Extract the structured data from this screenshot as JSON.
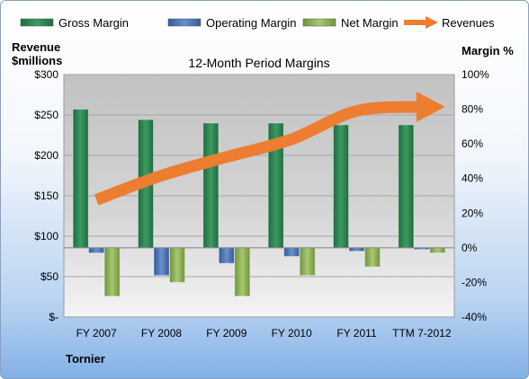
{
  "chart_data": {
    "type": "bar",
    "title": "12-Month Period Margins",
    "company": "Tornier",
    "ylabel_left": [
      "Revenue",
      "$millions"
    ],
    "ylabel_right": "Margin %",
    "categories": [
      "FY 2007",
      "FY 2008",
      "FY 2009",
      "FY 2010",
      "FY 2011",
      "TTM 7-2012"
    ],
    "left_axis": {
      "range": [
        0,
        300
      ],
      "ticks": [
        0,
        50,
        100,
        150,
        200,
        250,
        300
      ],
      "tick_labels": [
        "$-",
        "$50",
        "$100",
        "$150",
        "$200",
        "$250",
        "$300"
      ]
    },
    "right_axis": {
      "range": [
        -40,
        100
      ],
      "ticks": [
        -40,
        -20,
        0,
        20,
        40,
        60,
        80,
        100
      ],
      "tick_labels": [
        "-40%",
        "-20%",
        "0%",
        "20%",
        "40%",
        "60%",
        "80%",
        "100%"
      ]
    },
    "series": [
      {
        "name": "Gross Margin",
        "axis": "right",
        "kind": "bar",
        "color": "#2e7d4f",
        "values": [
          80,
          74,
          72,
          72,
          71,
          71
        ]
      },
      {
        "name": "Operating Margin",
        "axis": "right",
        "kind": "bar",
        "color": "#4a6fb0",
        "values": [
          -3,
          -16,
          -9,
          -5,
          -2,
          -1
        ]
      },
      {
        "name": "Net Margin",
        "axis": "right",
        "kind": "bar",
        "color": "#8db054",
        "values": [
          -28,
          -20,
          -28,
          -16,
          -11,
          -3
        ]
      },
      {
        "name": "Revenues",
        "axis": "left",
        "kind": "arrow",
        "color": "#ed7d31",
        "values": [
          145,
          175,
          198,
          220,
          255,
          260
        ]
      }
    ],
    "grid": true,
    "legend_position": "top"
  }
}
